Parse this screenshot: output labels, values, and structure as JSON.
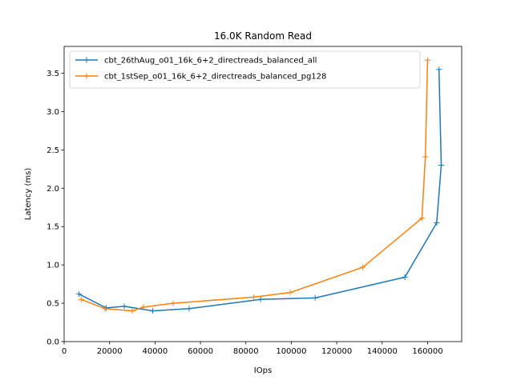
{
  "chart_data": {
    "type": "line",
    "title": "16.0K  Random Read",
    "xlabel": "IOps",
    "ylabel": "Latency (ms)",
    "xlim": [
      0,
      175000
    ],
    "ylim": [
      0,
      3.85
    ],
    "xticks": [
      0,
      20000,
      40000,
      60000,
      80000,
      100000,
      120000,
      140000,
      160000
    ],
    "xtick_labels": [
      "0",
      "20000",
      "40000",
      "60000",
      "80000",
      "100000",
      "120000",
      "140000",
      "160000"
    ],
    "yticks": [
      0.0,
      0.5,
      1.0,
      1.5,
      2.0,
      2.5,
      3.0,
      3.5
    ],
    "ytick_labels": [
      "0.0",
      "0.5",
      "1.0",
      "1.5",
      "2.0",
      "2.5",
      "3.0",
      "3.5"
    ],
    "grid": false,
    "legend_position": "top-left",
    "series": [
      {
        "name": "cbt_26thAug_o01_16k_6+2_directreads_balanced_all",
        "color": "#1f77b4",
        "marker": "plus",
        "x": [
          6500,
          18500,
          26500,
          39000,
          55000,
          86500,
          110500,
          150000,
          164000,
          166000,
          165000
        ],
        "y": [
          0.62,
          0.44,
          0.46,
          0.4,
          0.43,
          0.55,
          0.57,
          0.84,
          1.55,
          2.3,
          3.55
        ]
      },
      {
        "name": "cbt_1stSep_o01_16k_6+2_directreads_balanced_pg128",
        "color": "#ff7f0e",
        "marker": "plus",
        "x": [
          7500,
          18000,
          30000,
          35000,
          48000,
          83500,
          99500,
          131500,
          157500,
          159000,
          160000
        ],
        "y": [
          0.55,
          0.43,
          0.4,
          0.45,
          0.5,
          0.58,
          0.64,
          0.97,
          1.61,
          2.41,
          3.67
        ]
      }
    ]
  }
}
